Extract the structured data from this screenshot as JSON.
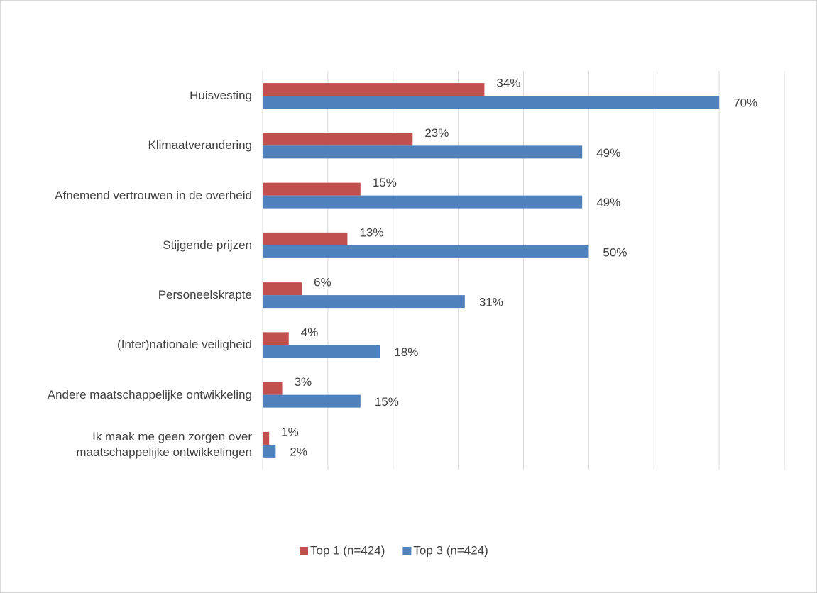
{
  "chart_data": {
    "type": "hbar",
    "categories": [
      "Huisvesting",
      "Klimaatverandering",
      "Afnemend vertrouwen in de overheid",
      "Stijgende prijzen",
      "Personeelskrapte",
      "(Inter)nationale veiligheid",
      "Andere maatschappelijke ontwikkeling",
      "Ik maak me geen zorgen over maatschappelijke ontwikkelingen"
    ],
    "series": [
      {
        "name": "Top 1 (n=424)",
        "color": "#c0504d",
        "values": [
          34,
          23,
          15,
          13,
          6,
          4,
          3,
          1
        ],
        "value_labels": [
          "34%",
          "23%",
          "15%",
          "13%",
          "6%",
          "4%",
          "3%",
          "1%"
        ]
      },
      {
        "name": "Top 3 (n=424)",
        "color": "#4f81bd",
        "values": [
          70,
          49,
          49,
          50,
          31,
          18,
          15,
          2
        ],
        "value_labels": [
          "70%",
          "49%",
          "49%",
          "50%",
          "31%",
          "18%",
          "15%",
          "2%"
        ]
      }
    ],
    "xlim": [
      0,
      80
    ],
    "xticks": [
      0,
      10,
      20,
      30,
      40,
      50,
      60,
      70,
      80
    ],
    "grid": true,
    "legend": "bottom"
  }
}
